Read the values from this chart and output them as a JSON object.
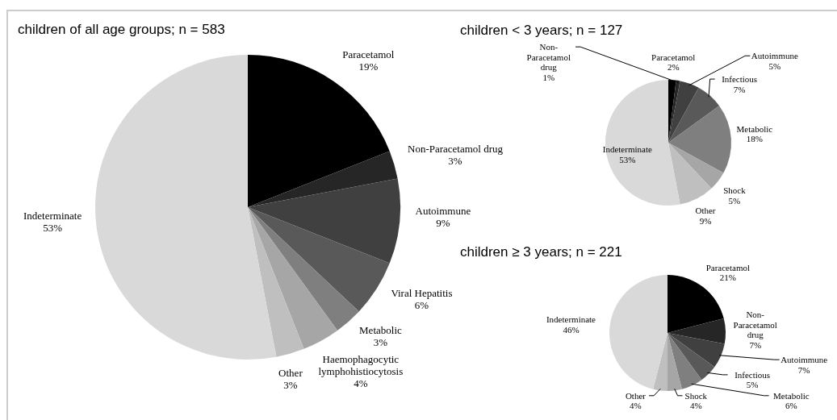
{
  "chart_data": [
    {
      "type": "pie",
      "title": "children of all age groups; n = 583",
      "categories": [
        "Paracetamol",
        "Non-Paracetamol drug",
        "Autoimmune",
        "Viral Hepatitis",
        "Metabolic",
        "Haemophagocytic lymphohistiocytosis",
        "Other",
        "Indeterminate"
      ],
      "values": [
        19,
        3,
        9,
        6,
        3,
        4,
        3,
        53
      ],
      "value_labels": [
        "19%",
        "3%",
        "9%",
        "6%",
        "3%",
        "4%",
        "3%",
        "53%"
      ],
      "colors": [
        "#000000",
        "#262626",
        "#404040",
        "#595959",
        "#7f7f7f",
        "#a6a6a6",
        "#bfbfbf",
        "#d9d9d9"
      ]
    },
    {
      "type": "pie",
      "title": "children < 3 years; n = 127",
      "categories": [
        "Paracetamol",
        "Non-Paracetamol drug",
        "Autoimmune",
        "Infectious",
        "Metabolic",
        "Shock",
        "Other",
        "Indeterminate"
      ],
      "values": [
        2,
        1,
        5,
        7,
        18,
        5,
        9,
        53
      ],
      "value_labels": [
        "2%",
        "1%",
        "5%",
        "7%",
        "18%",
        "5%",
        "9%",
        "53%"
      ],
      "colors": [
        "#000000",
        "#262626",
        "#404040",
        "#595959",
        "#7f7f7f",
        "#a6a6a6",
        "#bfbfbf",
        "#d9d9d9"
      ]
    },
    {
      "type": "pie",
      "title": "children ≥ 3 years; n = 221",
      "categories": [
        "Paracetamol",
        "Non-Paracetamol drug",
        "Autoimmune",
        "Infectious",
        "Metabolic",
        "Shock",
        "Other",
        "Indeterminate"
      ],
      "values": [
        21,
        7,
        7,
        5,
        6,
        4,
        4,
        46
      ],
      "value_labels": [
        "21%",
        "7%",
        "7%",
        "5%",
        "6%",
        "4%",
        "4%",
        "46%"
      ],
      "colors": [
        "#000000",
        "#262626",
        "#404040",
        "#595959",
        "#7f7f7f",
        "#a6a6a6",
        "#bfbfbf",
        "#d9d9d9"
      ]
    }
  ]
}
